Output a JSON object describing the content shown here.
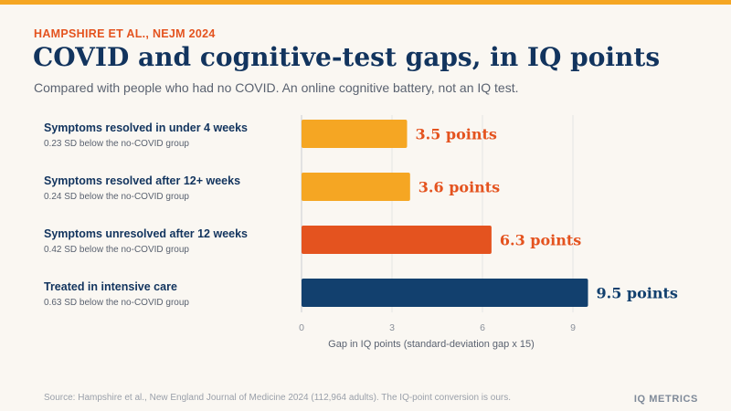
{
  "header": {
    "kicker": "HAMPSHIRE ET AL., NEJM 2024",
    "title": "COVID and cognitive-test gaps, in IQ points",
    "subtitle": "Compared with people who had no COVID. An online cognitive battery, not an IQ test."
  },
  "chart_data": {
    "type": "bar",
    "orientation": "horizontal",
    "categories": [
      "Symptoms resolved in under 4 weeks",
      "Symptoms resolved after 12+ weeks",
      "Symptoms unresolved after 12 weeks",
      "Treated in intensive care"
    ],
    "subtitles": [
      "0.23 SD below the no-COVID group",
      "0.24 SD below the no-COVID group",
      "0.42 SD below the no-COVID group",
      "0.63 SD below the no-COVID group"
    ],
    "values": [
      3.5,
      3.6,
      6.3,
      9.5
    ],
    "value_labels": [
      "3.5 points",
      "3.6 points",
      "6.3 points",
      "9.5 points"
    ],
    "bar_colors": [
      "#f5a623",
      "#f5a623",
      "#e4531f",
      "#12406e"
    ],
    "label_colors": [
      "#e4531f",
      "#e4531f",
      "#e4531f",
      "#12406e"
    ],
    "xlabel": "Gap in IQ points (standard-deviation gap x 15)",
    "xticks": [
      0,
      3,
      6,
      9
    ],
    "xlim": [
      0,
      9.6
    ],
    "grid": true
  },
  "footer": {
    "source": "Source: Hampshire et al., New England Journal of Medicine 2024 (112,964 adults). The IQ-point conversion is ours.",
    "brand": "IQ METRICS"
  }
}
